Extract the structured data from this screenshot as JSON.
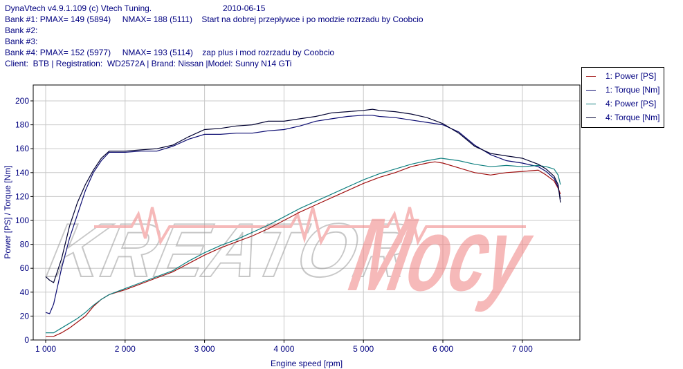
{
  "header": {
    "line1": "DynaVtech v4.9.1.109 (c) Vtech Tuning.",
    "date": "2010-06-15",
    "bank1": "Bank #1: PMAX= 149 (5894)     NMAX= 188 (5111)    Start na dobrej przepływce i po modzie rozrzadu by Coobcio",
    "bank2": "Bank #2:",
    "bank3": "Bank #3:",
    "bank4": "Bank #4: PMAX= 152 (5977)     NMAX= 193 (5114)    zap plus i mod rozrzadu by Coobcio",
    "client": "Client:  BTB | Registration:  WD2572A | Brand: Nissan |Model: Sunny N14 GTi"
  },
  "watermark": {
    "text": "KREATOR Mocy"
  },
  "colors": {
    "power1": "#a01010",
    "torque1": "#0a0a70",
    "power4": "#108080",
    "torque4": "#000030",
    "text": "#000080",
    "grid": "#c8c8c8"
  },
  "chart_data": {
    "type": "line",
    "xlabel": "Engine speed [rpm]",
    "ylabel": "Power [PS] / Torque [Nm]",
    "xlim": [
      1000,
      7500
    ],
    "ylim": [
      0,
      200
    ],
    "xticks": [
      1000,
      2000,
      3000,
      4000,
      5000,
      6000,
      7000
    ],
    "xtick_labels": [
      "1 000",
      "2 000",
      "3 000",
      "4 000",
      "5 000",
      "6 000",
      "7 000"
    ],
    "yticks": [
      0,
      20,
      40,
      60,
      80,
      100,
      120,
      140,
      160,
      180,
      200
    ],
    "ytick_labels": [
      "0",
      "20",
      "40",
      "60",
      "80",
      "100",
      "120",
      "140",
      "160",
      "180",
      "200"
    ],
    "grid": true,
    "legend_position": "top-right",
    "series": [
      {
        "name": "1: Power [PS]",
        "color": "#a01010",
        "x": [
          1000,
          1100,
          1200,
          1300,
          1400,
          1500,
          1600,
          1700,
          1800,
          2000,
          2200,
          2400,
          2600,
          2800,
          3000,
          3200,
          3400,
          3600,
          3800,
          4000,
          4200,
          4400,
          4600,
          4800,
          5000,
          5200,
          5400,
          5600,
          5800,
          5900,
          6000,
          6200,
          6400,
          6600,
          6800,
          7000,
          7200,
          7300,
          7400,
          7450,
          7480
        ],
        "y": [
          3,
          3,
          6,
          10,
          15,
          20,
          28,
          34,
          38,
          42,
          47,
          52,
          57,
          64,
          71,
          77,
          82,
          87,
          93,
          100,
          107,
          113,
          119,
          125,
          131,
          136,
          140,
          145,
          148,
          149,
          148,
          144,
          140,
          138,
          140,
          141,
          142,
          138,
          133,
          127,
          122
        ]
      },
      {
        "name": "1: Torque [Nm]",
        "color": "#0a0a70",
        "x": [
          1000,
          1050,
          1100,
          1200,
          1300,
          1400,
          1500,
          1600,
          1700,
          1800,
          2000,
          2200,
          2400,
          2600,
          2800,
          3000,
          3200,
          3400,
          3600,
          3800,
          4000,
          4200,
          4400,
          4600,
          4800,
          5000,
          5111,
          5200,
          5400,
          5600,
          5800,
          6000,
          6200,
          6400,
          6600,
          6800,
          7000,
          7200,
          7300,
          7400,
          7450,
          7480
        ],
        "y": [
          23,
          22,
          30,
          60,
          85,
          105,
          125,
          140,
          150,
          157,
          157,
          158,
          158,
          162,
          168,
          172,
          172,
          173,
          173,
          175,
          176,
          179,
          183,
          185,
          187,
          188,
          188,
          187,
          186,
          184,
          182,
          180,
          174,
          163,
          155,
          150,
          148,
          145,
          141,
          135,
          128,
          118
        ]
      },
      {
        "name": "4: Power [PS]",
        "color": "#108080",
        "x": [
          1000,
          1100,
          1200,
          1300,
          1400,
          1500,
          1600,
          1700,
          1800,
          2000,
          2200,
          2400,
          2600,
          2800,
          3000,
          3200,
          3400,
          3600,
          3800,
          4000,
          4200,
          4400,
          4600,
          4800,
          5000,
          5200,
          5400,
          5600,
          5800,
          5977,
          6200,
          6400,
          6600,
          6800,
          7000,
          7200,
          7300,
          7400,
          7450,
          7480
        ],
        "y": [
          6,
          6,
          10,
          14,
          18,
          23,
          29,
          34,
          38,
          43,
          48,
          53,
          58,
          66,
          73,
          79,
          84,
          90,
          96,
          103,
          110,
          116,
          122,
          128,
          134,
          139,
          143,
          147,
          150,
          152,
          150,
          147,
          145,
          146,
          145,
          146,
          145,
          143,
          138,
          130
        ]
      },
      {
        "name": "4: Torque [Nm]",
        "color": "#000030",
        "x": [
          1000,
          1050,
          1100,
          1200,
          1300,
          1400,
          1500,
          1600,
          1700,
          1800,
          2000,
          2200,
          2400,
          2600,
          2800,
          3000,
          3200,
          3400,
          3600,
          3800,
          4000,
          4200,
          4400,
          4600,
          4800,
          5000,
          5114,
          5200,
          5400,
          5600,
          5800,
          6000,
          6200,
          6400,
          6600,
          6800,
          7000,
          7200,
          7300,
          7400,
          7450,
          7480
        ],
        "y": [
          53,
          50,
          48,
          68,
          95,
          115,
          130,
          142,
          152,
          158,
          158,
          159,
          160,
          163,
          170,
          176,
          177,
          179,
          180,
          183,
          183,
          185,
          187,
          190,
          191,
          192,
          193,
          192,
          191,
          189,
          186,
          181,
          173,
          162,
          156,
          154,
          152,
          147,
          143,
          137,
          130,
          115
        ]
      }
    ]
  }
}
